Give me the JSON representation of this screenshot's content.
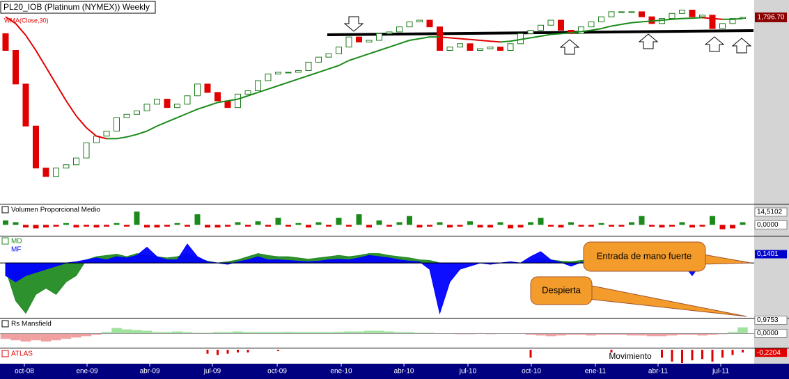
{
  "chart_data": {
    "type": "candlestick",
    "title": "PL20_IOB (Platinum (NYMEX)) Weekly",
    "wma_label": "WMA(Close,30)",
    "ylim": [
      700,
      1900
    ],
    "first_open": 1700,
    "close": [
      1600,
      1400,
      1150,
      900,
      850,
      900,
      920,
      960,
      1050,
      1090,
      1120,
      1200,
      1220,
      1240,
      1280,
      1310,
      1260,
      1280,
      1330,
      1400,
      1350,
      1300,
      1260,
      1340,
      1360,
      1420,
      1460,
      1470,
      1470,
      1480,
      1530,
      1560,
      1580,
      1620,
      1680,
      1650,
      1660,
      1700,
      1710,
      1740,
      1770,
      1780,
      1740,
      1600,
      1620,
      1640,
      1600,
      1610,
      1620,
      1600,
      1640,
      1700,
      1720,
      1750,
      1780,
      1720,
      1700,
      1740,
      1770,
      1800,
      1830,
      1830,
      1830,
      1800,
      1760,
      1790,
      1820,
      1840,
      1800,
      1810,
      1730,
      1760,
      1790,
      1796.7
    ],
    "wma": [
      1800,
      1760,
      1690,
      1600,
      1500,
      1400,
      1300,
      1210,
      1140,
      1090,
      1075,
      1075,
      1085,
      1100,
      1120,
      1150,
      1175,
      1200,
      1225,
      1250,
      1270,
      1290,
      1300,
      1310,
      1330,
      1350,
      1370,
      1390,
      1410,
      1430,
      1450,
      1470,
      1490,
      1510,
      1540,
      1560,
      1580,
      1600,
      1620,
      1640,
      1660,
      1670,
      1680,
      1680,
      1675,
      1670,
      1665,
      1660,
      1655,
      1650,
      1655,
      1665,
      1675,
      1685,
      1695,
      1700,
      1705,
      1712,
      1720,
      1730,
      1745,
      1755,
      1765,
      1770,
      1775,
      1780,
      1785,
      1790,
      1792,
      1795,
      1790,
      1785,
      1785,
      1790
    ],
    "last_price": {
      "value": 1796.7,
      "label": "1,796.70"
    },
    "xticks": [
      {
        "value": 1.86,
        "label": "oct-08"
      },
      {
        "value": 8.07,
        "label": "ene-09"
      },
      {
        "value": 14.28,
        "label": "abr-09"
      },
      {
        "value": 20.48,
        "label": "jul-09"
      },
      {
        "value": 26.9,
        "label": "oct-09"
      },
      {
        "value": 33.24,
        "label": "ene-10"
      },
      {
        "value": 39.45,
        "label": "abr-10"
      },
      {
        "value": 45.79,
        "label": "jul-10"
      },
      {
        "value": 52.07,
        "label": "oct-10"
      },
      {
        "value": 58.41,
        "label": "ene-11"
      },
      {
        "value": 64.62,
        "label": "abr-11"
      },
      {
        "value": 70.83,
        "label": "jul-11"
      }
    ],
    "annotations": [
      "Entrada de mano fuerte",
      "Despierta",
      "Movimiento"
    ],
    "volume": {
      "title": "Volumen Proporcional Medio",
      "ylim": [
        -10,
        20
      ],
      "values": [
        5,
        3,
        -3,
        -4,
        -3,
        -2,
        2,
        -3,
        -2,
        -3,
        -2,
        2,
        -2,
        15,
        -3,
        -3,
        -2,
        2,
        -2,
        12,
        -3,
        -3,
        -2,
        3,
        -2,
        4,
        -2,
        8,
        -2,
        2,
        -3,
        3,
        -2,
        8,
        -2,
        12,
        -3,
        5,
        -2,
        3,
        10,
        -3,
        -2,
        3,
        -3,
        -2,
        4,
        -3,
        -3,
        3,
        -4,
        -3,
        3,
        8,
        -2,
        -3,
        3,
        -2,
        -2,
        2,
        -2,
        -2,
        3,
        10,
        -2,
        -3,
        -2,
        3,
        -3,
        -2,
        10,
        -5,
        -4,
        3
      ],
      "labels": [
        {
          "value": 14.5102,
          "label": "14,5102"
        },
        {
          "value": 0,
          "label": "0,0000"
        }
      ]
    },
    "money": {
      "ylim": [
        -0.85,
        0.4
      ],
      "series": [
        {
          "name": "MD",
          "color": "#228b22",
          "values": [
            -0.1,
            -0.6,
            -0.8,
            -0.5,
            -0.4,
            -0.5,
            -0.3,
            -0.2,
            0.05,
            0.1,
            0.12,
            0.14,
            0.1,
            0.15,
            0.12,
            0.1,
            0.08,
            0.1,
            0.15,
            0.08,
            0.03,
            0,
            0.02,
            0.05,
            0.1,
            0.15,
            0.12,
            0.1,
            0.1,
            0.08,
            0.06,
            0.08,
            0.1,
            0.12,
            0.1,
            0.12,
            0.15,
            0.15,
            0.12,
            0.1,
            0.08,
            0.05,
            0.04,
            0,
            -0.02,
            0,
            0,
            0,
            0,
            0,
            0,
            0,
            0.04,
            0.08,
            0.05,
            0.03,
            0.02,
            0.04,
            0.05,
            0.04,
            0.05,
            0.04,
            0.03,
            0.05,
            0.04,
            0.03,
            0.02,
            0.03,
            0.02,
            0,
            0.01,
            0.01,
            0.02,
            0.03
          ]
        },
        {
          "name": "MF",
          "color": "#0000ff",
          "values": [
            -0.2,
            -0.3,
            -0.2,
            -0.15,
            -0.1,
            -0.05,
            0,
            0.02,
            0.05,
            0.08,
            0.05,
            0.1,
            0.08,
            0.12,
            0.25,
            0.1,
            0.05,
            0.05,
            0.3,
            0.1,
            0.02,
            0,
            -0.02,
            0.02,
            0.05,
            0.1,
            0.05,
            0.05,
            0.04,
            0.03,
            0.02,
            0.03,
            0.05,
            0.06,
            0.05,
            0.08,
            0.12,
            0.1,
            0.08,
            0.05,
            0.03,
            0.02,
            -0.1,
            -0.8,
            -0.3,
            -0.1,
            -0.05,
            0,
            -0.02,
            0,
            0.02,
            0,
            0.1,
            0.18,
            0.05,
            0.01,
            -0.05,
            0.01,
            0.02,
            0.01,
            0,
            -0.02,
            0.02,
            -0.1,
            0.01,
            0.02,
            0.01,
            0,
            -0.2,
            0.02,
            0.01,
            0.02,
            0.01,
            0.01
          ]
        }
      ],
      "labels": [
        {
          "value": 0.1401,
          "label": "0,1401"
        }
      ]
    },
    "rs": {
      "title": "Rs Mansfield",
      "ylim": [
        -1,
        1
      ],
      "values": [
        -0.4,
        -0.5,
        -0.6,
        -0.5,
        -0.6,
        -0.5,
        -0.4,
        -0.3,
        -0.2,
        -0.1,
        0.1,
        0.4,
        0.3,
        0.25,
        0.2,
        0.1,
        0.1,
        0.15,
        0.1,
        0.05,
        0.05,
        0.1,
        0.1,
        0.15,
        0.1,
        0.1,
        0.1,
        0.1,
        0.12,
        0.1,
        0.1,
        0.1,
        0.1,
        0.12,
        0.15,
        0.15,
        0.2,
        0.2,
        0.15,
        0.1,
        0.1,
        0.05,
        0.05,
        0,
        0,
        -0.05,
        -0.05,
        0,
        -0.05,
        0,
        0,
        0,
        -0.1,
        -0.15,
        -0.2,
        -0.15,
        -0.1,
        -0.1,
        -0.15,
        -0.1,
        -0.1,
        -0.1,
        -0.15,
        -0.15,
        -0.2,
        -0.2,
        -0.15,
        -0.1,
        -0.1,
        -0.15,
        -0.1,
        -0.05,
        0.1,
        0.45
      ],
      "labels": [
        {
          "value": 0.9753,
          "label": "0,9753"
        },
        {
          "value": 0,
          "label": "0,0000"
        }
      ]
    },
    "atlas": {
      "title": "ATLAS",
      "ylim": [
        -1,
        0.05
      ],
      "values": [
        0,
        0,
        0,
        0,
        0,
        0,
        0,
        0,
        0,
        0,
        0,
        0,
        0,
        0,
        0,
        0,
        0,
        0,
        0,
        0,
        -0.3,
        -0.4,
        -0.3,
        -0.2,
        -0.2,
        0,
        0,
        -0.1,
        0,
        0,
        0,
        0,
        0,
        0,
        0,
        0,
        0,
        0,
        0,
        0,
        0,
        0,
        0,
        0,
        0,
        0,
        0,
        0,
        0,
        0,
        0,
        0,
        -0.6,
        0,
        0,
        0,
        0,
        0,
        0,
        0,
        -0.2,
        0,
        0,
        0,
        0,
        -0.6,
        -0.9,
        -1,
        -0.8,
        -0.7,
        -0.9,
        -0.6,
        -0.4,
        -0.2
      ],
      "labels": [
        {
          "value": -0.2204,
          "label": "-0,2204"
        }
      ]
    }
  }
}
